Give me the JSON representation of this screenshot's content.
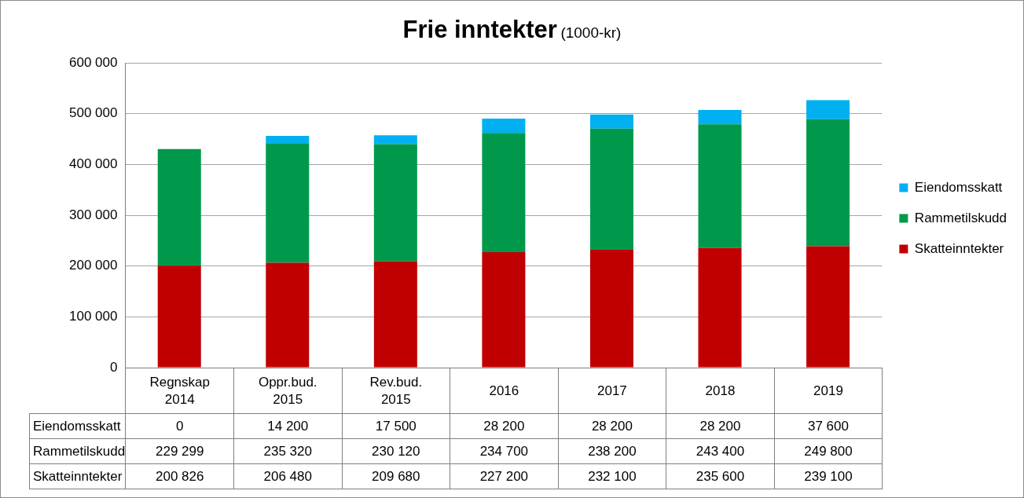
{
  "chart_data": {
    "type": "bar",
    "title": "Frie inntekter",
    "subtitle": "(1000-kr)",
    "categories": [
      "Regnskap 2014",
      "Oppr.bud. 2015",
      "Rev.bud. 2015",
      "2016",
      "2017",
      "2018",
      "2019"
    ],
    "series": [
      {
        "name": "Eiendomsskatt",
        "color": "#00b0f0",
        "values": [
          0,
          14200,
          17500,
          28200,
          28200,
          28200,
          37600
        ],
        "value_labels": [
          "0",
          "14 200",
          "17 500",
          "28 200",
          "28 200",
          "28 200",
          "37 600"
        ]
      },
      {
        "name": "Rammetilskudd",
        "color": "#00994c",
        "values": [
          229299,
          235320,
          230120,
          234700,
          238200,
          243400,
          249800
        ],
        "value_labels": [
          "229 299",
          "235 320",
          "230 120",
          "234 700",
          "238 200",
          "243 400",
          "249 800"
        ]
      },
      {
        "name": "Skatteinntekter",
        "color": "#c00000",
        "values": [
          200826,
          206480,
          209680,
          227200,
          232100,
          235600,
          239100
        ],
        "value_labels": [
          "200 826",
          "206 480",
          "209 680",
          "227 200",
          "232 100",
          "235 600",
          "239 100"
        ]
      }
    ],
    "stacked": true,
    "grid": true,
    "legend": "right",
    "ylim": [
      0,
      600000
    ],
    "yticks": [
      {
        "value": 0,
        "label": "0"
      },
      {
        "value": 100000,
        "label": "100 000"
      },
      {
        "value": 200000,
        "label": "200 000"
      },
      {
        "value": 300000,
        "label": "300 000"
      },
      {
        "value": 400000,
        "label": "400 000"
      },
      {
        "value": 500000,
        "label": "500 000"
      },
      {
        "value": 600000,
        "label": "600 000"
      }
    ]
  }
}
